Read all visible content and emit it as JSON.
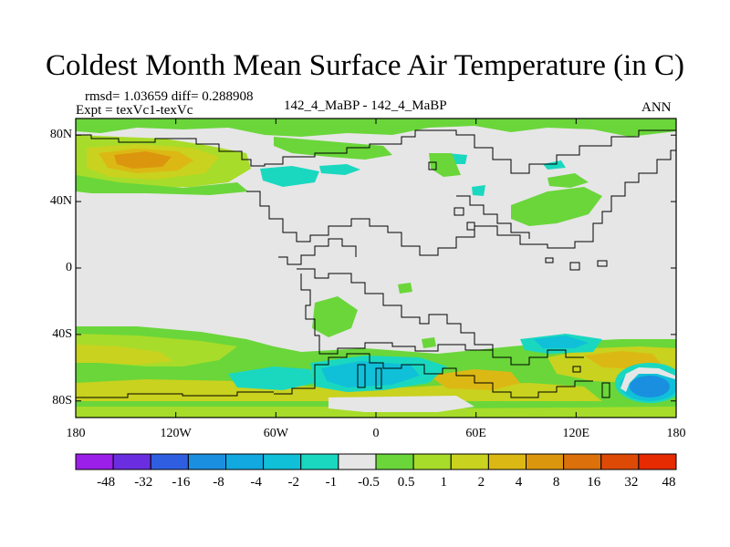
{
  "title": "Coldest Month Mean Surface Air Temperature (in C)",
  "stats": "rmsd= 1.03659 diff= 0.288908",
  "expt": "Expt = texVc1-texVc",
  "center_label": "142_4_MaBP - 142_4_MaBP",
  "season": "ANN",
  "map": {
    "projection": "cylindrical-equidistant",
    "lon_range": [
      -180,
      180
    ],
    "lat_range": [
      -90,
      90
    ],
    "lat_ticks": [
      {
        "value": 80,
        "label": "80N"
      },
      {
        "value": 40,
        "label": "40N"
      },
      {
        "value": 0,
        "label": "0"
      },
      {
        "value": -40,
        "label": "40S"
      },
      {
        "value": -80,
        "label": "80S"
      }
    ],
    "lon_ticks": [
      {
        "value": -180,
        "label": "180"
      },
      {
        "value": -120,
        "label": "120W"
      },
      {
        "value": -60,
        "label": "60W"
      },
      {
        "value": 0,
        "label": "0"
      },
      {
        "value": 60,
        "label": "60E"
      },
      {
        "value": 120,
        "label": "120E"
      },
      {
        "value": 180,
        "label": "180"
      }
    ],
    "background_color": "#e6e6e6"
  },
  "colorbar": {
    "colors": [
      "#9b1fe8",
      "#6a2ee0",
      "#2f5fe0",
      "#1a8fe0",
      "#12a8e0",
      "#10c0d8",
      "#1ad8c0",
      "#e6e6e6",
      "#6ad63a",
      "#a8dc2a",
      "#c9d21e",
      "#dcb814",
      "#dc960e",
      "#dc700a",
      "#dc4a06",
      "#e62a02"
    ],
    "labels": [
      "-48",
      "-32",
      "-16",
      "-8",
      "-4",
      "-2",
      "-1",
      "-0.5",
      "0.5",
      "1",
      "2",
      "4",
      "8",
      "16",
      "32",
      "48"
    ]
  }
}
